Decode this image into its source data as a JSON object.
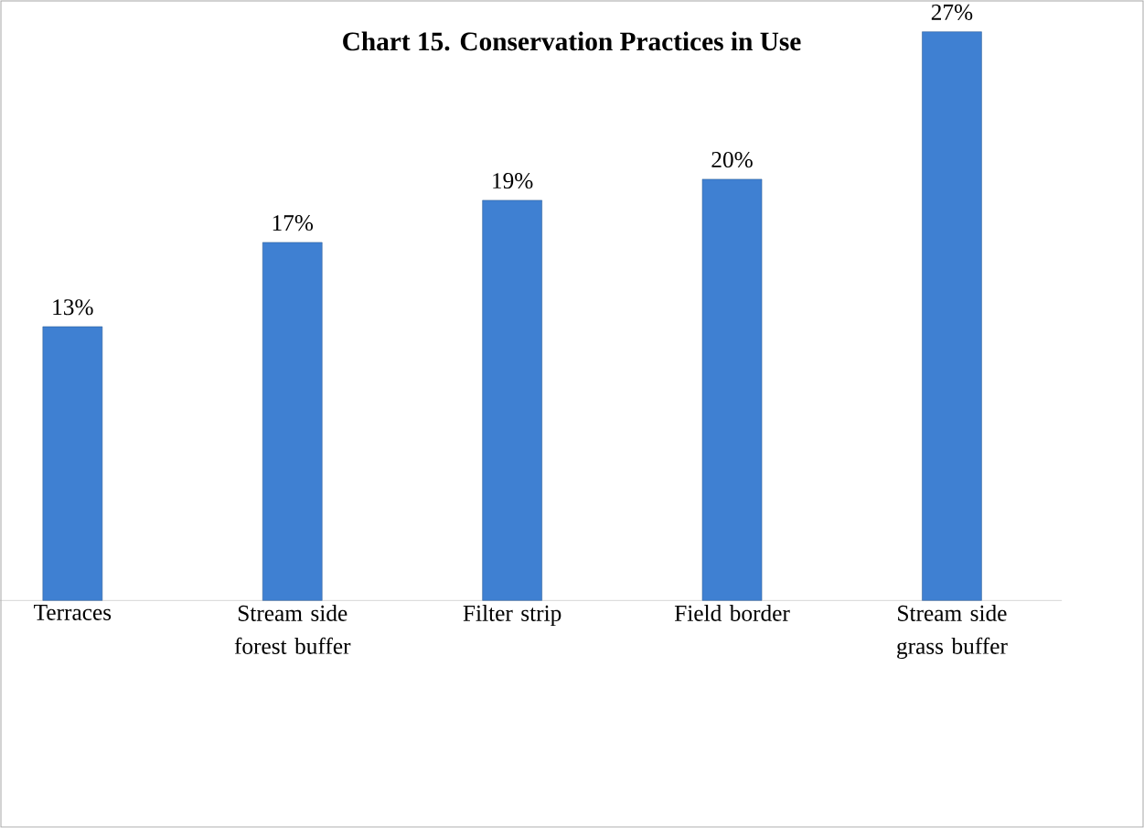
{
  "chart_data": {
    "type": "bar",
    "title": "Chart 15. Conservation Practices in Use",
    "categories": [
      "Terraces",
      "Stream side forest buffer",
      "Filter strip",
      "Field border",
      "Stream side grass buffer"
    ],
    "values": [
      13,
      17,
      19,
      20,
      27
    ],
    "value_labels": [
      "13%",
      "17%",
      "19%",
      "20%",
      "27%"
    ],
    "color": "#3f80d2"
  }
}
